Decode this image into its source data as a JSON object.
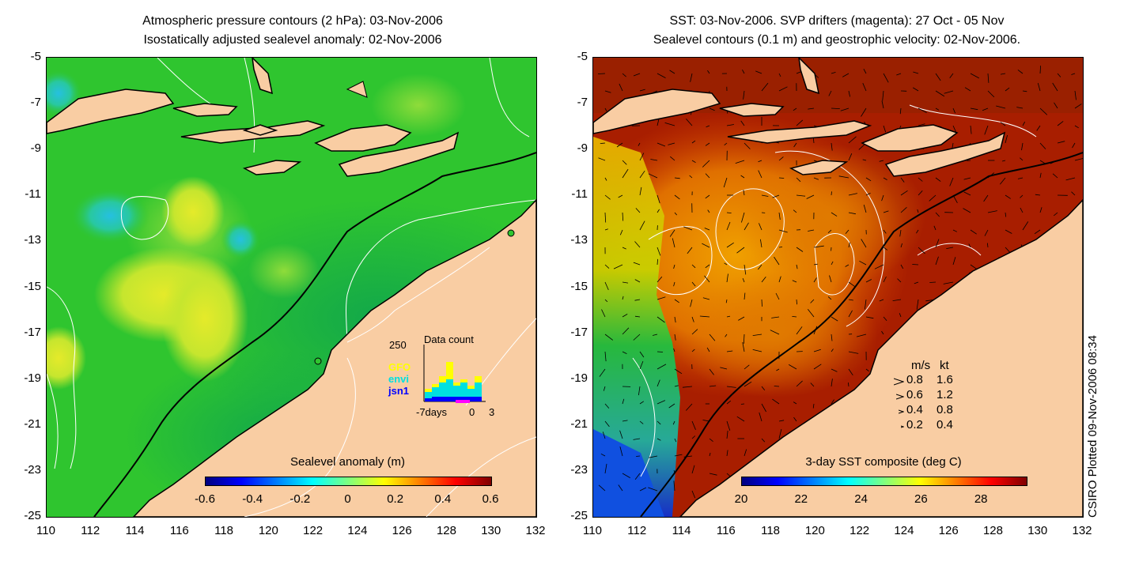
{
  "left_panel": {
    "title_line1": "Atmospheric pressure contours (2 hPa): 03-Nov-2006",
    "title_line2": "Isostatically adjusted sealevel anomaly: 02-Nov-2006",
    "colorbar": {
      "label": "Sealevel anomaly (m)",
      "ticks": [
        "-0.6",
        "-0.4",
        "-0.2",
        "0",
        "0.2",
        "0.4",
        "0.6"
      ],
      "range": [
        -0.6,
        0.6
      ]
    },
    "inset": {
      "title": "Data count",
      "max_label": "250",
      "x_start": "-7days",
      "x_zero": "0",
      "x_end": "3",
      "missions": [
        {
          "name": "GFO",
          "color": "#ffff00"
        },
        {
          "name": "envi",
          "color": "#00e0e0"
        },
        {
          "name": "jsn1",
          "color": "#0000ff"
        }
      ]
    }
  },
  "right_panel": {
    "title_line1": "SST: 03-Nov-2006. SVP drifters (magenta): 27 Oct - 05 Nov",
    "title_line2": "Sealevel contours (0.1 m) and geostrophic velocity: 02-Nov-2006.",
    "colorbar": {
      "label": "3-day SST composite (deg C)",
      "ticks": [
        "20",
        "22",
        "24",
        "26",
        "28"
      ],
      "range": [
        20,
        29.5
      ]
    },
    "velocity_legend": {
      "header_ms": "m/s",
      "header_kt": "kt",
      "rows": [
        {
          "ms": "0.8",
          "kt": "1.6"
        },
        {
          "ms": "0.6",
          "kt": "1.2"
        },
        {
          "ms": "0.4",
          "kt": "0.8"
        },
        {
          "ms": "0.2",
          "kt": "0.4"
        }
      ]
    }
  },
  "axes": {
    "y_ticks": [
      "-5",
      "-7",
      "-9",
      "-11",
      "-13",
      "-15",
      "-17",
      "-19",
      "-21",
      "-23",
      "-25"
    ],
    "x_ticks": [
      "110",
      "112",
      "114",
      "116",
      "118",
      "120",
      "122",
      "124",
      "126",
      "128",
      "130",
      "132"
    ],
    "lon_range": [
      110,
      132
    ],
    "lat_range": [
      -25,
      -5
    ]
  },
  "credit": "CSIRO Plotted 09-Nov-2006 08:34",
  "colors": {
    "land": "#f9cda3",
    "coast": "#000000",
    "contour": "#ffffff"
  }
}
